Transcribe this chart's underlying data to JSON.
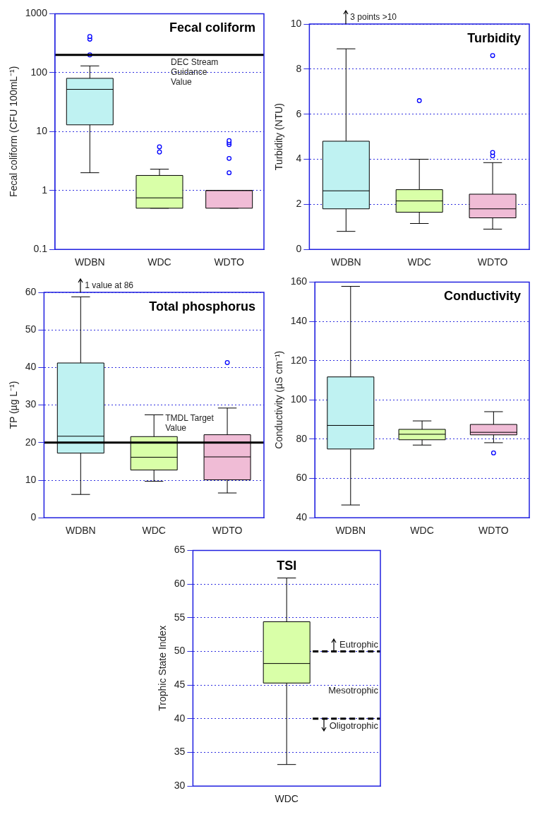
{
  "chart_data": [
    {
      "type": "box",
      "title": "Fecal coliform",
      "ylabel": "Fecal coliform (CFU 100mL⁻¹)",
      "categories": [
        "WDBN",
        "WDC",
        "WDTO"
      ],
      "colors": [
        "#bff2f2",
        "#d9ffa8",
        "#f0bcd6"
      ],
      "log": "y",
      "ylim": [
        0.1,
        1000
      ],
      "yticks": [
        0.1,
        1,
        10,
        100,
        1000
      ],
      "grid": "y",
      "boxes": [
        {
          "low": 2,
          "q1": 13,
          "median": 52,
          "q3": 80,
          "high": 130,
          "outliers": [
            200,
            370,
            410
          ]
        },
        {
          "low": 0.5,
          "q1": 0.5,
          "median": 0.75,
          "q3": 1.8,
          "high": 2.3,
          "outliers": [
            4.5,
            5.5
          ]
        },
        {
          "low": 0.5,
          "q1": 0.5,
          "median": 1,
          "q3": 1,
          "high": 1,
          "outliers": [
            2,
            3.5,
            6,
            6.5,
            7
          ]
        }
      ],
      "ref_lines": [
        {
          "axis": "y",
          "value": 200,
          "label": "DEC Stream Guidance Value",
          "color": "#000000",
          "line_style": "solid"
        }
      ]
    },
    {
      "type": "box",
      "title": "Turbidity",
      "ylabel": "Turbidity (NTU)",
      "categories": [
        "WDBN",
        "WDC",
        "WDTO"
      ],
      "colors": [
        "#bff2f2",
        "#d9ffa8",
        "#f0bcd6"
      ],
      "ylim": [
        0,
        10
      ],
      "yticks": [
        0,
        2,
        4,
        6,
        8,
        10
      ],
      "grid": "y",
      "boxes": [
        {
          "low": 0.8,
          "q1": 1.8,
          "median": 2.6,
          "q3": 4.8,
          "high": 8.9
        },
        {
          "low": 1.15,
          "q1": 1.65,
          "median": 2.15,
          "q3": 2.65,
          "high": 4,
          "outliers": [
            6.6
          ]
        },
        {
          "low": 0.9,
          "q1": 1.4,
          "median": 1.8,
          "q3": 2.45,
          "high": 3.85,
          "outliers": [
            4.15,
            4.3,
            8.6
          ]
        }
      ],
      "annotations": [
        "3 points >10"
      ]
    },
    {
      "type": "box",
      "title": "Total phosphorus",
      "ylabel": "TP (µg L⁻¹)",
      "categories": [
        "WDBN",
        "WDC",
        "WDTO"
      ],
      "colors": [
        "#bff2f2",
        "#d9ffa8",
        "#f0bcd6"
      ],
      "ylim": [
        0,
        60
      ],
      "yticks": [
        0,
        10,
        20,
        30,
        40,
        50,
        60
      ],
      "grid": "y",
      "boxes": [
        {
          "low": 6.2,
          "q1": 17.2,
          "median": 21.7,
          "q3": 41.2,
          "high": 58.8
        },
        {
          "low": 9.7,
          "q1": 12.7,
          "median": 16.1,
          "q3": 21.6,
          "high": 27.4
        },
        {
          "low": 6.6,
          "q1": 10.1,
          "median": 16.2,
          "q3": 22.1,
          "high": 29.2,
          "outliers": [
            41.3
          ]
        }
      ],
      "ref_lines": [
        {
          "axis": "y",
          "value": 20,
          "label": "TMDL Target Value",
          "color": "#000000",
          "line_style": "solid"
        }
      ],
      "annotations": [
        "1 value at 86"
      ]
    },
    {
      "type": "box",
      "title": "Conductivity",
      "ylabel": "Conductivity (µS cm⁻¹)",
      "categories": [
        "WDBN",
        "WDC",
        "WDTO"
      ],
      "colors": [
        "#bff2f2",
        "#d9ffa8",
        "#f0bcd6"
      ],
      "ylim": [
        40,
        160
      ],
      "yticks": [
        40,
        60,
        80,
        100,
        120,
        140,
        160
      ],
      "grid": "y",
      "boxes": [
        {
          "low": 46.5,
          "q1": 75,
          "median": 87,
          "q3": 111.7,
          "high": 157.8
        },
        {
          "low": 77,
          "q1": 79.7,
          "median": 82.5,
          "q3": 85,
          "high": 89.3
        },
        {
          "low": 78.2,
          "q1": 82.2,
          "median": 83.5,
          "q3": 87.5,
          "high": 94,
          "outliers": [
            73
          ]
        }
      ]
    },
    {
      "type": "box",
      "title": "TSI",
      "ylabel": "Trophic State Index",
      "categories": [
        "WDC"
      ],
      "colors": [
        "#d9ffa8"
      ],
      "ylim": [
        30,
        65
      ],
      "yticks": [
        30,
        35,
        40,
        45,
        50,
        55,
        60,
        65
      ],
      "grid": "y",
      "boxes": [
        {
          "low": 33.2,
          "q1": 45.3,
          "median": 48.2,
          "q3": 54.4,
          "high": 60.9
        }
      ],
      "ref_lines": [
        {
          "axis": "y",
          "value": 50,
          "label": "Eutrophic",
          "color": "#000000",
          "line_style": "dashed"
        },
        {
          "axis": "y",
          "value": 40,
          "label": "Oligotrophic",
          "color": "#000000",
          "line_style": "dashed"
        }
      ],
      "annotations": [
        "Mesotrophic"
      ]
    }
  ]
}
